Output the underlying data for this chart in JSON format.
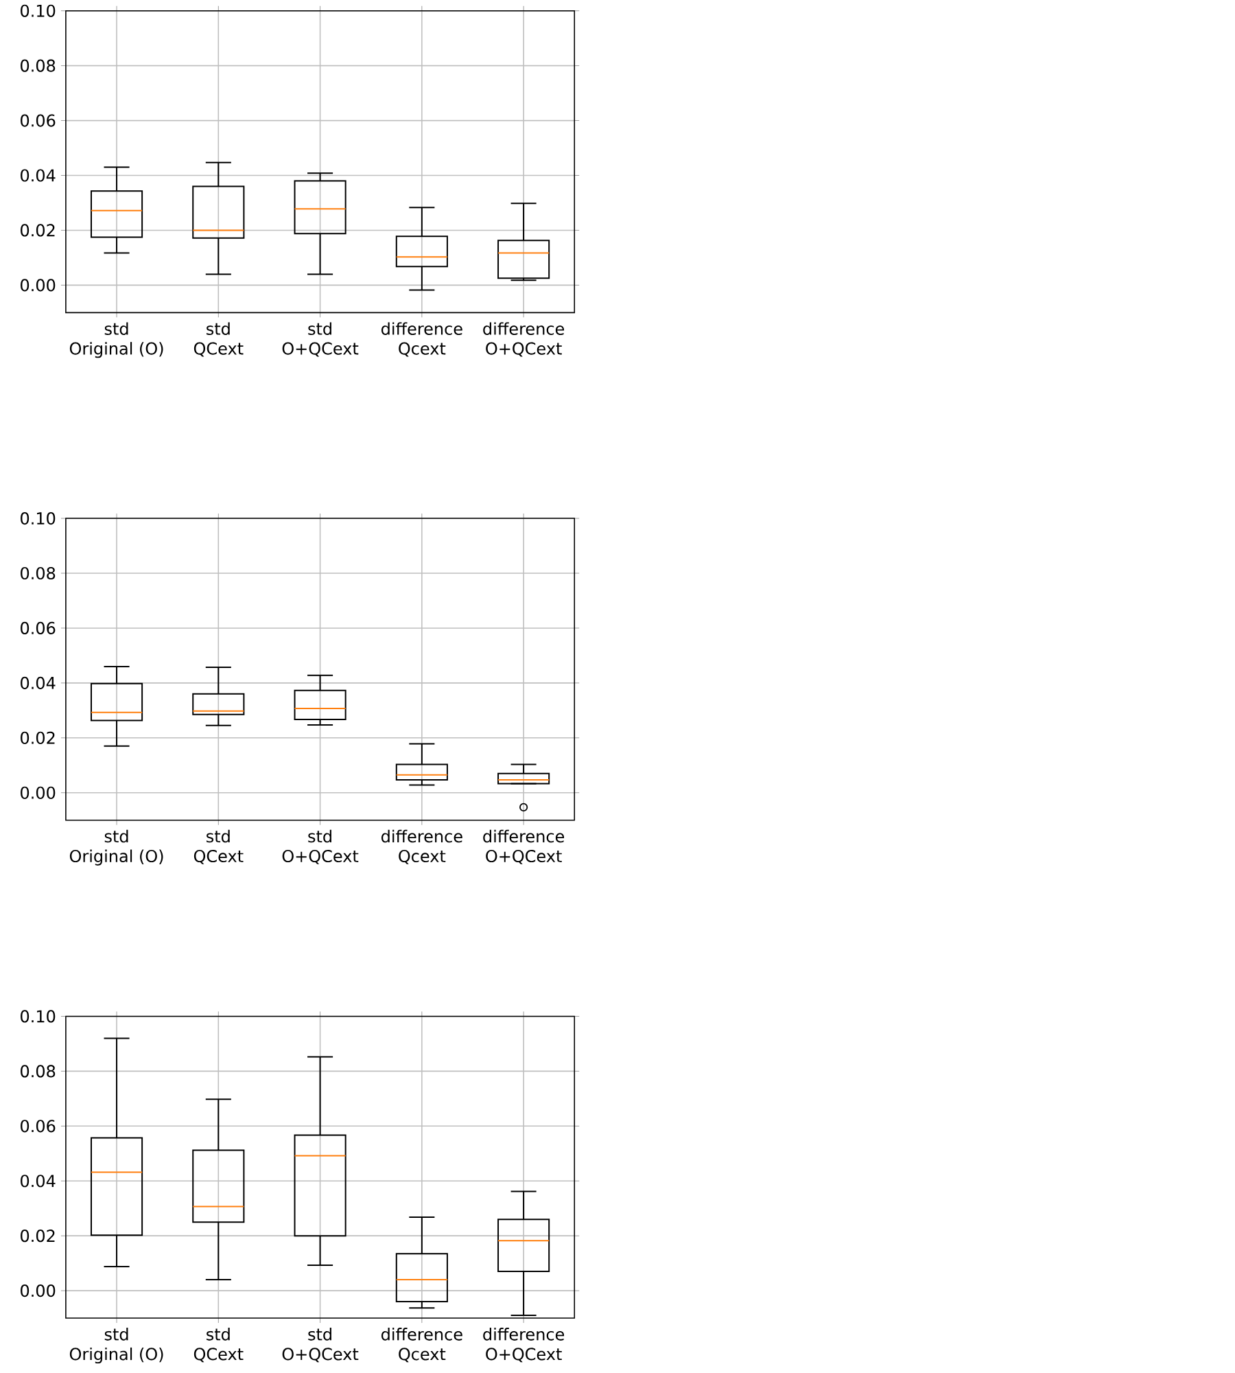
{
  "chart_data": [
    {
      "type": "box",
      "categories": [
        "std\nOriginal (O)",
        "std\nQCext",
        "std\nO+QCext",
        "difference\nQcext",
        "difference\nO+QCext"
      ],
      "series": [
        {
          "color": "#000000",
          "boxes": [
            {
              "low": 0.0117,
              "q1": 0.0175,
              "median": 0.0272,
              "q3": 0.0343,
              "high": 0.043
            },
            {
              "low": 0.004,
              "q1": 0.0172,
              "median": 0.02,
              "q3": 0.036,
              "high": 0.0447
            },
            {
              "low": 0.004,
              "q1": 0.0188,
              "median": 0.0278,
              "q3": 0.038,
              "high": 0.0408
            },
            {
              "low": -0.0018,
              "q1": 0.0068,
              "median": 0.0103,
              "q3": 0.0178,
              "high": 0.0283
            },
            {
              "low": 0.0018,
              "q1": 0.0025,
              "median": 0.0117,
              "q3": 0.0163,
              "high": 0.0298
            }
          ]
        }
      ],
      "ylim": [
        -0.01,
        0.1
      ],
      "yticks": [
        {
          "value": 0,
          "label": "0.00"
        },
        {
          "value": 0.02,
          "label": "0.02"
        },
        {
          "value": 0.04,
          "label": "0.04"
        },
        {
          "value": 0.06,
          "label": "0.06"
        },
        {
          "value": 0.08,
          "label": "0.08"
        },
        {
          "value": 0.1,
          "label": "0.10"
        }
      ],
      "grid": true
    },
    {
      "type": "box",
      "categories": [
        "std\nOriginal (O)",
        "std\nQCext",
        "std\nO+QCext",
        "difference\nQcext",
        "difference\nO+QCext"
      ],
      "series": [
        {
          "color": "#000000",
          "boxes": [
            {
              "low": 0.017,
              "q1": 0.0263,
              "median": 0.0293,
              "q3": 0.0398,
              "high": 0.046
            },
            {
              "low": 0.0245,
              "q1": 0.0285,
              "median": 0.0298,
              "q3": 0.036,
              "high": 0.0457
            },
            {
              "low": 0.0247,
              "q1": 0.0267,
              "median": 0.0307,
              "q3": 0.0373,
              "high": 0.0428
            },
            {
              "low": 0.0028,
              "q1": 0.0047,
              "median": 0.0065,
              "q3": 0.0103,
              "high": 0.0178
            },
            {
              "low": 0.0033,
              "q1": 0.0033,
              "median": 0.0047,
              "q3": 0.007,
              "high": 0.0103,
              "outliers": [
                -0.0053
              ]
            }
          ]
        }
      ],
      "ylim": [
        -0.01,
        0.1
      ],
      "yticks": [
        {
          "value": 0,
          "label": "0.00"
        },
        {
          "value": 0.02,
          "label": "0.02"
        },
        {
          "value": 0.04,
          "label": "0.04"
        },
        {
          "value": 0.06,
          "label": "0.06"
        },
        {
          "value": 0.08,
          "label": "0.08"
        },
        {
          "value": 0.1,
          "label": "0.10"
        }
      ],
      "grid": true
    },
    {
      "type": "box",
      "categories": [
        "std\nOriginal (O)",
        "std\nQCext",
        "std\nO+QCext",
        "difference\nQcext",
        "difference\nO+QCext"
      ],
      "series": [
        {
          "color": "#000000",
          "boxes": [
            {
              "low": 0.0088,
              "q1": 0.0202,
              "median": 0.0432,
              "q3": 0.0557,
              "high": 0.092
            },
            {
              "low": 0.004,
              "q1": 0.025,
              "median": 0.0307,
              "q3": 0.0512,
              "high": 0.0698
            },
            {
              "low": 0.0093,
              "q1": 0.02,
              "median": 0.0492,
              "q3": 0.0567,
              "high": 0.0852
            },
            {
              "low": -0.0063,
              "q1": -0.004,
              "median": 0.004,
              "q3": 0.0135,
              "high": 0.0268
            },
            {
              "low": -0.009,
              "q1": 0.007,
              "median": 0.0182,
              "q3": 0.026,
              "high": 0.0362
            }
          ]
        }
      ],
      "ylim": [
        -0.01,
        0.1
      ],
      "yticks": [
        {
          "value": 0,
          "label": "0.00"
        },
        {
          "value": 0.02,
          "label": "0.02"
        },
        {
          "value": 0.04,
          "label": "0.04"
        },
        {
          "value": 0.06,
          "label": "0.06"
        },
        {
          "value": 0.08,
          "label": "0.08"
        },
        {
          "value": 0.1,
          "label": "0.10"
        }
      ],
      "grid": true
    }
  ]
}
